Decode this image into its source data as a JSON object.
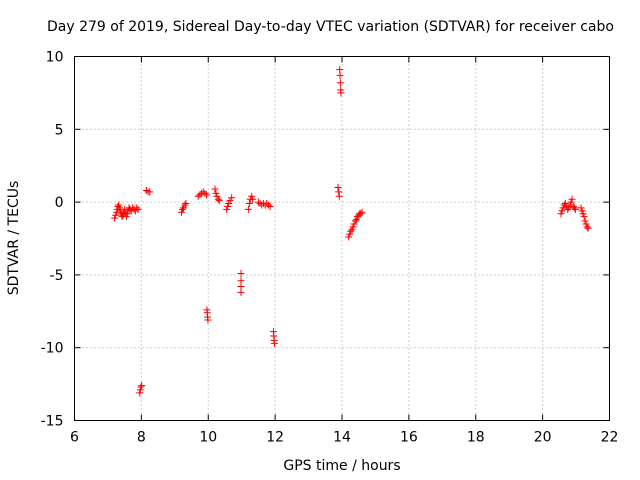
{
  "chart_data": {
    "type": "scatter",
    "title": "Day 279 of 2019, Sidereal Day-to-day VTEC variation (SDTVAR) for receiver cabo",
    "xlabel": "GPS time / hours",
    "ylabel": "SDTVAR / TECUs",
    "xlim": [
      6,
      22
    ],
    "ylim": [
      -15,
      10
    ],
    "xticks": [
      6,
      8,
      10,
      12,
      14,
      16,
      18,
      20,
      22
    ],
    "yticks": [
      -15,
      -10,
      -5,
      0,
      5,
      10
    ],
    "xtick_labels": [
      "6",
      "8",
      "10",
      "12",
      "14",
      "16",
      "18",
      "20",
      "22"
    ],
    "ytick_labels": [
      "-15",
      "-10",
      "-5",
      "0",
      "5",
      "10"
    ],
    "grid": true,
    "marker": "+",
    "color": "#ff0000",
    "series": [
      {
        "name": "SDTVAR",
        "points": [
          [
            7.2,
            -1.1
          ],
          [
            7.23,
            -0.9
          ],
          [
            7.26,
            -0.7
          ],
          [
            7.28,
            -0.5
          ],
          [
            7.3,
            -0.3
          ],
          [
            7.32,
            -0.2
          ],
          [
            7.35,
            -0.4
          ],
          [
            7.37,
            -0.6
          ],
          [
            7.4,
            -0.8
          ],
          [
            7.42,
            -1.0
          ],
          [
            7.45,
            -0.9
          ],
          [
            7.48,
            -0.7
          ],
          [
            7.5,
            -0.5
          ],
          [
            7.53,
            -0.8
          ],
          [
            7.55,
            -1.0
          ],
          [
            7.58,
            -0.8
          ],
          [
            7.6,
            -0.6
          ],
          [
            7.63,
            -0.4
          ],
          [
            7.66,
            -0.5
          ],
          [
            7.7,
            -0.6
          ],
          [
            7.74,
            -0.4
          ],
          [
            7.78,
            -0.5
          ],
          [
            7.82,
            -0.6
          ],
          [
            7.86,
            -0.4
          ],
          [
            7.9,
            -0.5
          ],
          [
            7.95,
            -13.1
          ],
          [
            7.97,
            -12.9
          ],
          [
            7.99,
            -12.7
          ],
          [
            8.01,
            -12.6
          ],
          [
            8.15,
            0.8
          ],
          [
            8.2,
            0.7
          ],
          [
            8.25,
            0.7
          ],
          [
            9.2,
            -0.7
          ],
          [
            9.23,
            -0.5
          ],
          [
            9.26,
            -0.4
          ],
          [
            9.3,
            -0.2
          ],
          [
            9.33,
            -0.1
          ],
          [
            9.7,
            0.4
          ],
          [
            9.75,
            0.5
          ],
          [
            9.8,
            0.6
          ],
          [
            9.85,
            0.7
          ],
          [
            9.9,
            0.6
          ],
          [
            9.95,
            0.5
          ],
          [
            9.96,
            -7.4
          ],
          [
            9.97,
            -7.6
          ],
          [
            9.98,
            -7.9
          ],
          [
            9.99,
            -8.1
          ],
          [
            10.2,
            0.9
          ],
          [
            10.23,
            0.6
          ],
          [
            10.26,
            0.4
          ],
          [
            10.3,
            0.2
          ],
          [
            10.33,
            0.1
          ],
          [
            10.55,
            -0.5
          ],
          [
            10.58,
            -0.3
          ],
          [
            10.61,
            -0.1
          ],
          [
            10.65,
            0.1
          ],
          [
            10.7,
            0.3
          ],
          [
            10.98,
            -4.9
          ],
          [
            10.98,
            -5.4
          ],
          [
            10.98,
            -5.8
          ],
          [
            10.98,
            -6.2
          ],
          [
            11.2,
            -0.5
          ],
          [
            11.23,
            -0.1
          ],
          [
            11.26,
            0.2
          ],
          [
            11.3,
            0.4
          ],
          [
            11.33,
            0.2
          ],
          [
            11.5,
            0.0
          ],
          [
            11.55,
            -0.1
          ],
          [
            11.6,
            -0.2
          ],
          [
            11.65,
            -0.1
          ],
          [
            11.7,
            -0.2
          ],
          [
            11.75,
            -0.1
          ],
          [
            11.8,
            -0.2
          ],
          [
            11.85,
            -0.3
          ],
          [
            11.95,
            -8.9
          ],
          [
            11.96,
            -9.2
          ],
          [
            11.97,
            -9.5
          ],
          [
            11.98,
            -9.7
          ],
          [
            13.88,
            1.0
          ],
          [
            13.9,
            0.7
          ],
          [
            13.92,
            0.4
          ],
          [
            13.93,
            9.1
          ],
          [
            13.94,
            8.7
          ],
          [
            13.95,
            8.2
          ],
          [
            13.96,
            7.7
          ],
          [
            13.97,
            7.5
          ],
          [
            14.2,
            -2.4
          ],
          [
            14.23,
            -2.2
          ],
          [
            14.26,
            -2.0
          ],
          [
            14.3,
            -1.9
          ],
          [
            14.33,
            -1.7
          ],
          [
            14.36,
            -1.5
          ],
          [
            14.4,
            -1.3
          ],
          [
            14.43,
            -1.2
          ],
          [
            14.46,
            -1.0
          ],
          [
            14.5,
            -0.9
          ],
          [
            14.53,
            -0.8
          ],
          [
            14.56,
            -0.8
          ],
          [
            14.6,
            -0.7
          ],
          [
            20.55,
            -0.8
          ],
          [
            20.58,
            -0.6
          ],
          [
            20.61,
            -0.4
          ],
          [
            20.65,
            -0.2
          ],
          [
            20.68,
            -0.1
          ],
          [
            20.72,
            -0.3
          ],
          [
            20.75,
            -0.5
          ],
          [
            20.78,
            -0.4
          ],
          [
            20.82,
            -0.2
          ],
          [
            20.85,
            0.0
          ],
          [
            20.88,
            0.2
          ],
          [
            20.92,
            -0.3
          ],
          [
            20.95,
            -0.4
          ],
          [
            20.98,
            -0.5
          ],
          [
            21.15,
            -0.4
          ],
          [
            21.18,
            -0.6
          ],
          [
            21.21,
            -0.8
          ],
          [
            21.24,
            -1.0
          ],
          [
            21.27,
            -1.3
          ],
          [
            21.3,
            -1.5
          ],
          [
            21.33,
            -1.7
          ],
          [
            21.36,
            -1.8
          ]
        ]
      }
    ]
  }
}
